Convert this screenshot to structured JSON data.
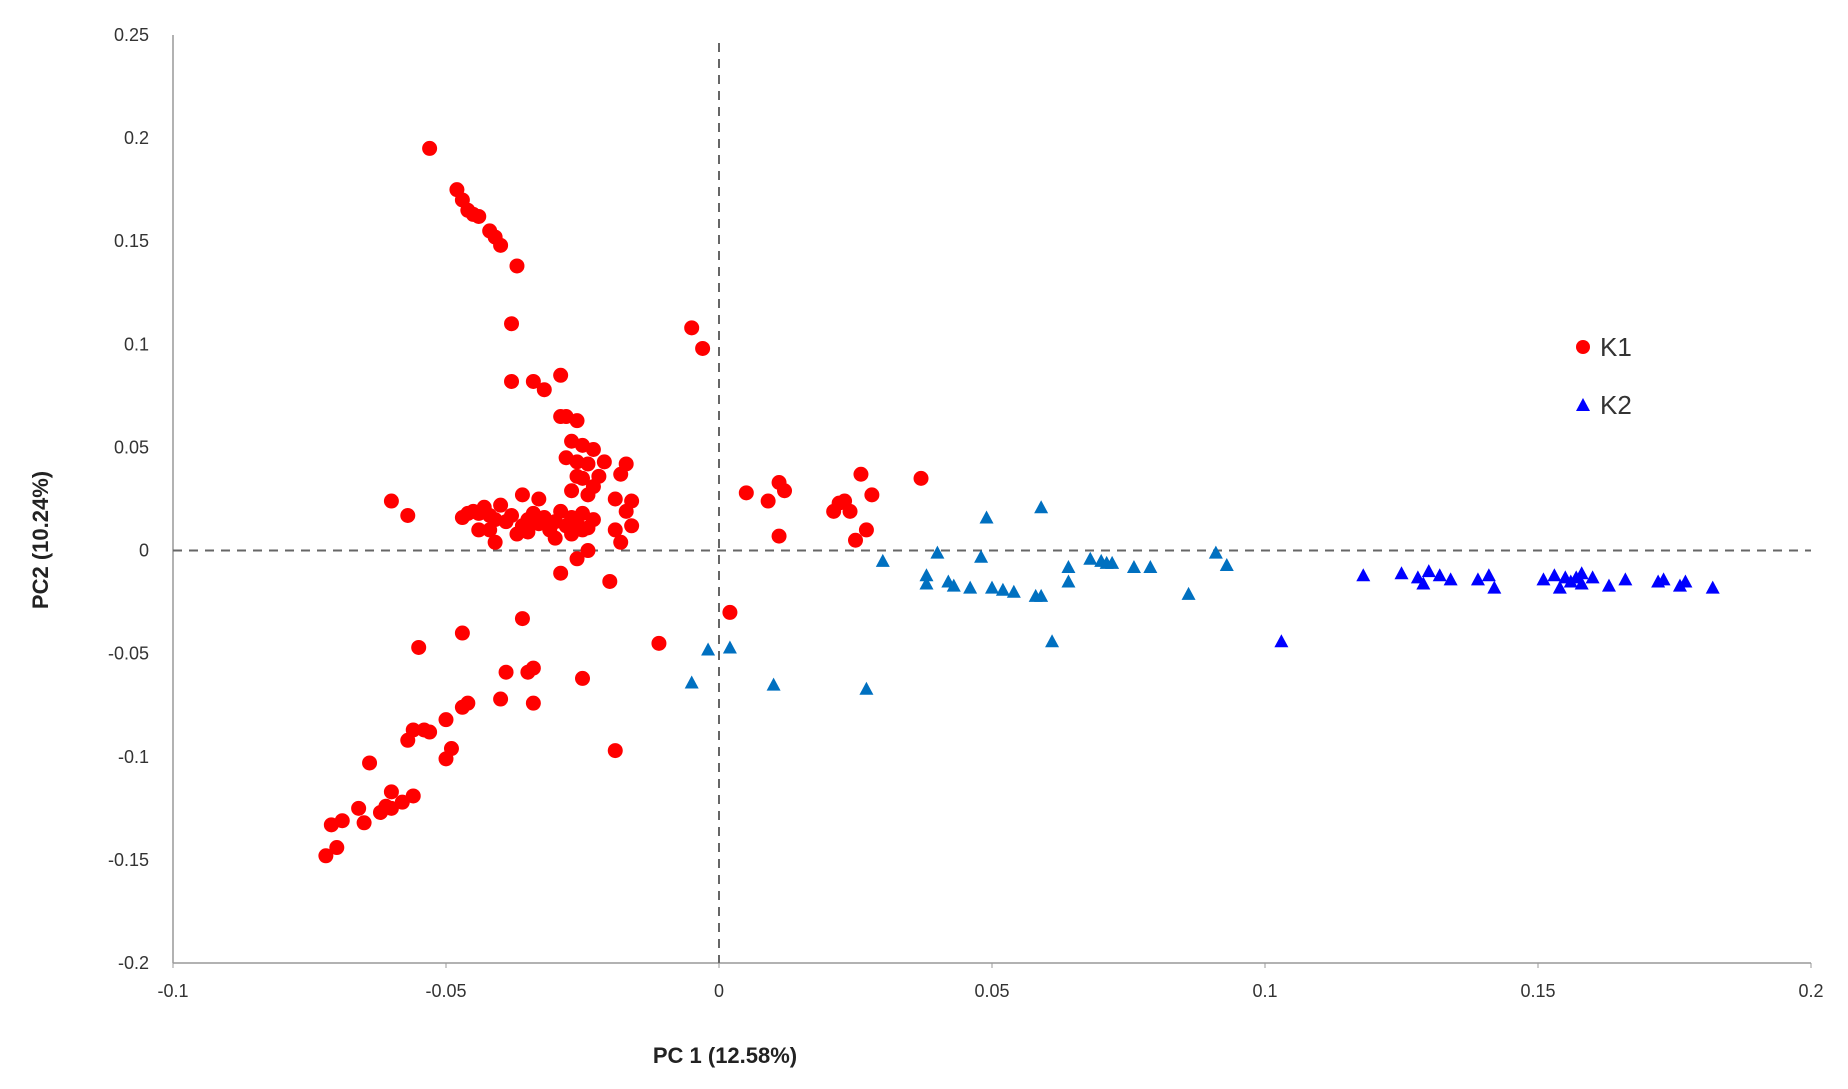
{
  "chart_data": {
    "type": "scatter",
    "title": "",
    "xlabel": "PC 1 (12.58%)",
    "ylabel": "PC2 (10.24%)",
    "xlim": [
      -0.1,
      0.2
    ],
    "ylim": [
      -0.2,
      0.25
    ],
    "x_ticks": [
      "-0.1",
      "-0.05",
      "0",
      "0.05",
      "0.1",
      "0.15",
      "0.2"
    ],
    "y_ticks": [
      "-0.2",
      "-0.15",
      "-0.1",
      "-0.05",
      "0",
      "0.05",
      "0.1",
      "0.15",
      "0.2",
      "0.25"
    ],
    "grid": false,
    "reference_lines": {
      "x": 0,
      "y": 0,
      "style": "dashed"
    },
    "legend": "right",
    "series": [
      {
        "name": "K1",
        "marker": "circle",
        "color": "#ff0000",
        "points": [
          [
            -0.053,
            0.195
          ],
          [
            -0.048,
            0.175
          ],
          [
            -0.047,
            0.17
          ],
          [
            -0.046,
            0.165
          ],
          [
            -0.045,
            0.163
          ],
          [
            -0.044,
            0.162
          ],
          [
            -0.042,
            0.155
          ],
          [
            -0.041,
            0.152
          ],
          [
            -0.04,
            0.148
          ],
          [
            -0.037,
            0.138
          ],
          [
            -0.038,
            0.11
          ],
          [
            -0.038,
            0.082
          ],
          [
            -0.034,
            0.082
          ],
          [
            -0.032,
            0.078
          ],
          [
            -0.029,
            0.085
          ],
          [
            -0.029,
            0.065
          ],
          [
            -0.028,
            0.065
          ],
          [
            -0.026,
            0.063
          ],
          [
            -0.027,
            0.053
          ],
          [
            -0.025,
            0.051
          ],
          [
            -0.023,
            0.049
          ],
          [
            -0.028,
            0.045
          ],
          [
            -0.026,
            0.043
          ],
          [
            -0.024,
            0.042
          ],
          [
            -0.022,
            0.036
          ],
          [
            -0.021,
            0.043
          ],
          [
            -0.017,
            0.042
          ],
          [
            -0.018,
            0.037
          ],
          [
            -0.026,
            0.036
          ],
          [
            -0.025,
            0.035
          ],
          [
            -0.023,
            0.031
          ],
          [
            -0.027,
            0.029
          ],
          [
            -0.024,
            0.027
          ],
          [
            -0.019,
            0.025
          ],
          [
            -0.016,
            0.024
          ],
          [
            -0.033,
            0.025
          ],
          [
            -0.036,
            0.027
          ],
          [
            -0.04,
            0.022
          ],
          [
            -0.043,
            0.021
          ],
          [
            -0.045,
            0.019
          ],
          [
            -0.046,
            0.018
          ],
          [
            -0.047,
            0.016
          ],
          [
            -0.044,
            0.018
          ],
          [
            -0.042,
            0.017
          ],
          [
            -0.041,
            0.015
          ],
          [
            -0.039,
            0.014
          ],
          [
            -0.038,
            0.017
          ],
          [
            -0.036,
            0.012
          ],
          [
            -0.035,
            0.015
          ],
          [
            -0.034,
            0.018
          ],
          [
            -0.033,
            0.013
          ],
          [
            -0.032,
            0.016
          ],
          [
            -0.031,
            0.011
          ],
          [
            -0.03,
            0.014
          ],
          [
            -0.029,
            0.019
          ],
          [
            -0.028,
            0.012
          ],
          [
            -0.027,
            0.016
          ],
          [
            -0.026,
            0.013
          ],
          [
            -0.025,
            0.018
          ],
          [
            -0.024,
            0.011
          ],
          [
            -0.023,
            0.015
          ],
          [
            -0.037,
            0.008
          ],
          [
            -0.035,
            0.009
          ],
          [
            -0.031,
            0.01
          ],
          [
            -0.044,
            0.01
          ],
          [
            -0.042,
            0.01
          ],
          [
            -0.03,
            0.006
          ],
          [
            -0.027,
            0.008
          ],
          [
            -0.025,
            0.01
          ],
          [
            -0.019,
            0.01
          ],
          [
            -0.016,
            0.012
          ],
          [
            -0.06,
            0.024
          ],
          [
            -0.057,
            0.017
          ],
          [
            -0.041,
            0.004
          ],
          [
            -0.018,
            0.004
          ],
          [
            -0.024,
            0.0
          ],
          [
            -0.029,
            -0.011
          ],
          [
            -0.02,
            -0.015
          ],
          [
            -0.026,
            -0.004
          ],
          [
            -0.017,
            0.019
          ],
          [
            -0.005,
            0.108
          ],
          [
            -0.003,
            0.098
          ],
          [
            0.005,
            0.028
          ],
          [
            0.011,
            0.033
          ],
          [
            0.012,
            0.029
          ],
          [
            0.009,
            0.024
          ],
          [
            0.011,
            0.007
          ],
          [
            0.021,
            0.019
          ],
          [
            0.022,
            0.023
          ],
          [
            0.023,
            0.024
          ],
          [
            0.024,
            0.019
          ],
          [
            0.026,
            0.037
          ],
          [
            0.028,
            0.027
          ],
          [
            0.027,
            0.01
          ],
          [
            0.025,
            0.005
          ],
          [
            0.037,
            0.035
          ],
          [
            0.002,
            -0.03
          ],
          [
            -0.011,
            -0.045
          ],
          [
            -0.036,
            -0.033
          ],
          [
            -0.047,
            -0.04
          ],
          [
            -0.055,
            -0.047
          ],
          [
            -0.025,
            -0.062
          ],
          [
            -0.034,
            -0.057
          ],
          [
            -0.035,
            -0.059
          ],
          [
            -0.039,
            -0.059
          ],
          [
            -0.04,
            -0.072
          ],
          [
            -0.034,
            -0.074
          ],
          [
            -0.046,
            -0.074
          ],
          [
            -0.047,
            -0.076
          ],
          [
            -0.05,
            -0.082
          ],
          [
            -0.054,
            -0.087
          ],
          [
            -0.056,
            -0.087
          ],
          [
            -0.053,
            -0.088
          ],
          [
            -0.057,
            -0.092
          ],
          [
            -0.049,
            -0.096
          ],
          [
            -0.05,
            -0.101
          ],
          [
            -0.064,
            -0.103
          ],
          [
            -0.019,
            -0.097
          ],
          [
            -0.056,
            -0.119
          ],
          [
            -0.058,
            -0.122
          ],
          [
            -0.06,
            -0.125
          ],
          [
            -0.061,
            -0.124
          ],
          [
            -0.062,
            -0.127
          ],
          [
            -0.066,
            -0.125
          ],
          [
            -0.06,
            -0.117
          ],
          [
            -0.065,
            -0.132
          ],
          [
            -0.069,
            -0.131
          ],
          [
            -0.071,
            -0.133
          ],
          [
            -0.07,
            -0.144
          ],
          [
            -0.072,
            -0.148
          ]
        ]
      },
      {
        "name": "K2",
        "marker": "triangle",
        "colors": [
          "#0070c0",
          "#0000ff"
        ],
        "points": [
          [
            -0.005,
            -0.064
          ],
          [
            -0.002,
            -0.048
          ],
          [
            0.002,
            -0.047
          ],
          [
            0.01,
            -0.065
          ],
          [
            0.027,
            -0.067
          ],
          [
            0.03,
            -0.005
          ],
          [
            0.038,
            -0.012
          ],
          [
            0.038,
            -0.016
          ],
          [
            0.04,
            -0.001
          ],
          [
            0.042,
            -0.015
          ],
          [
            0.043,
            -0.017
          ],
          [
            0.046,
            -0.018
          ],
          [
            0.048,
            -0.003
          ],
          [
            0.049,
            0.016
          ],
          [
            0.05,
            -0.018
          ],
          [
            0.052,
            -0.019
          ],
          [
            0.054,
            -0.02
          ],
          [
            0.058,
            -0.022
          ],
          [
            0.059,
            -0.022
          ],
          [
            0.059,
            0.021
          ],
          [
            0.061,
            -0.044
          ],
          [
            0.064,
            -0.008
          ],
          [
            0.064,
            -0.015
          ],
          [
            0.068,
            -0.004
          ],
          [
            0.07,
            -0.005
          ],
          [
            0.071,
            -0.006
          ],
          [
            0.072,
            -0.006
          ],
          [
            0.076,
            -0.008
          ],
          [
            0.079,
            -0.008
          ],
          [
            0.086,
            -0.021
          ],
          [
            0.091,
            -0.001
          ],
          [
            0.093,
            -0.007
          ],
          [
            0.103,
            -0.044
          ],
          [
            0.118,
            -0.012
          ],
          [
            0.125,
            -0.011
          ],
          [
            0.128,
            -0.013
          ],
          [
            0.129,
            -0.016
          ],
          [
            0.13,
            -0.01
          ],
          [
            0.132,
            -0.012
          ],
          [
            0.134,
            -0.014
          ],
          [
            0.139,
            -0.014
          ],
          [
            0.141,
            -0.012
          ],
          [
            0.142,
            -0.018
          ],
          [
            0.151,
            -0.014
          ],
          [
            0.153,
            -0.012
          ],
          [
            0.154,
            -0.018
          ],
          [
            0.155,
            -0.013
          ],
          [
            0.156,
            -0.015
          ],
          [
            0.157,
            -0.013
          ],
          [
            0.158,
            -0.011
          ],
          [
            0.158,
            -0.016
          ],
          [
            0.16,
            -0.013
          ],
          [
            0.163,
            -0.017
          ],
          [
            0.166,
            -0.014
          ],
          [
            0.172,
            -0.015
          ],
          [
            0.173,
            -0.014
          ],
          [
            0.176,
            -0.017
          ],
          [
            0.177,
            -0.015
          ],
          [
            0.182,
            -0.018
          ]
        ]
      }
    ]
  }
}
